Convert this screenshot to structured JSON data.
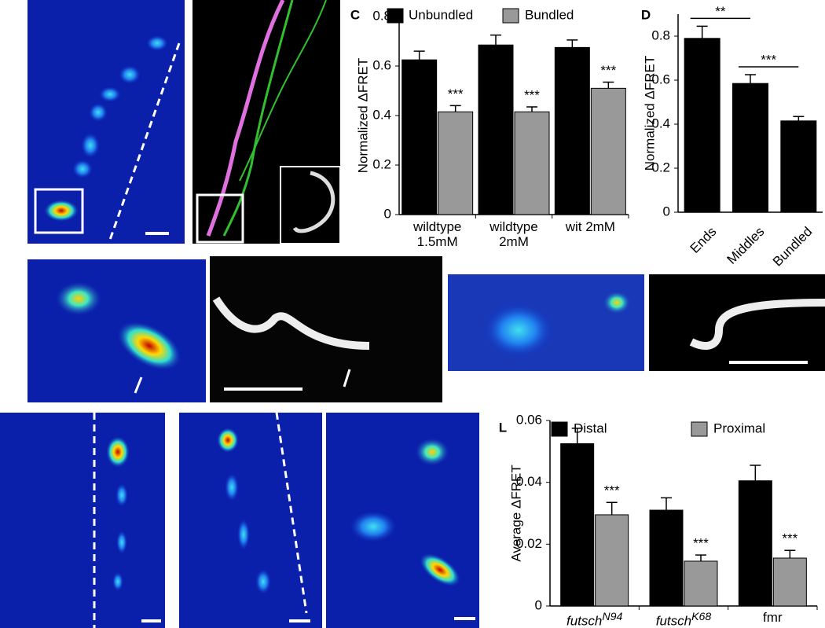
{
  "chart_data": [
    {
      "type": "bar",
      "panel": "C",
      "y_label": "Normalized ΔFRET",
      "categories": [
        "wildtype\n1.5mM",
        "wildtype\n2mM",
        "wit 2mM"
      ],
      "series": [
        {
          "name": "Unbundled",
          "color": "#000000",
          "values": [
            0.625,
            0.685,
            0.675
          ],
          "errors": [
            0.035,
            0.04,
            0.03
          ]
        },
        {
          "name": "Bundled",
          "color": "#999999",
          "values": [
            0.415,
            0.415,
            0.51
          ],
          "errors": [
            0.025,
            0.02,
            0.025
          ],
          "annotations": [
            "***",
            "***",
            "***"
          ]
        }
      ],
      "ylim": [
        0,
        0.8
      ],
      "yticks": [
        0,
        0.2,
        0.4,
        0.6,
        0.8
      ]
    },
    {
      "type": "bar",
      "panel": "D",
      "y_label": "Normalized ΔFRET",
      "categories": [
        "Ends",
        "Middles",
        "Bundled"
      ],
      "series": [
        {
          "color": "#000000",
          "values": [
            0.79,
            0.585,
            0.415
          ],
          "errors": [
            0.055,
            0.04,
            0.02
          ]
        }
      ],
      "brackets": [
        "**",
        "***"
      ],
      "ylim": [
        0,
        0.9
      ],
      "yticks": [
        0,
        0.2,
        0.4,
        0.6,
        0.8
      ]
    },
    {
      "type": "bar",
      "panel": "L",
      "y_label": "Average ΔFRET",
      "categories": [
        "futsch",
        "futsch",
        "fmr"
      ],
      "superscripts": [
        "N94",
        "K68"
      ],
      "series": [
        {
          "name": "Distal",
          "color": "#000000",
          "values": [
            0.0525,
            0.031,
            0.0405
          ],
          "errors": [
            0.005,
            0.004,
            0.005
          ]
        },
        {
          "name": "Proximal",
          "color": "#999999",
          "values": [
            0.0295,
            0.0145,
            0.0155
          ],
          "errors": [
            0.004,
            0.002,
            0.0025
          ],
          "annotations": [
            "***",
            "***",
            "***"
          ]
        }
      ],
      "ylim": [
        0,
        0.06
      ],
      "yticks": [
        0,
        0.02,
        0.04,
        0.06
      ]
    }
  ]
}
